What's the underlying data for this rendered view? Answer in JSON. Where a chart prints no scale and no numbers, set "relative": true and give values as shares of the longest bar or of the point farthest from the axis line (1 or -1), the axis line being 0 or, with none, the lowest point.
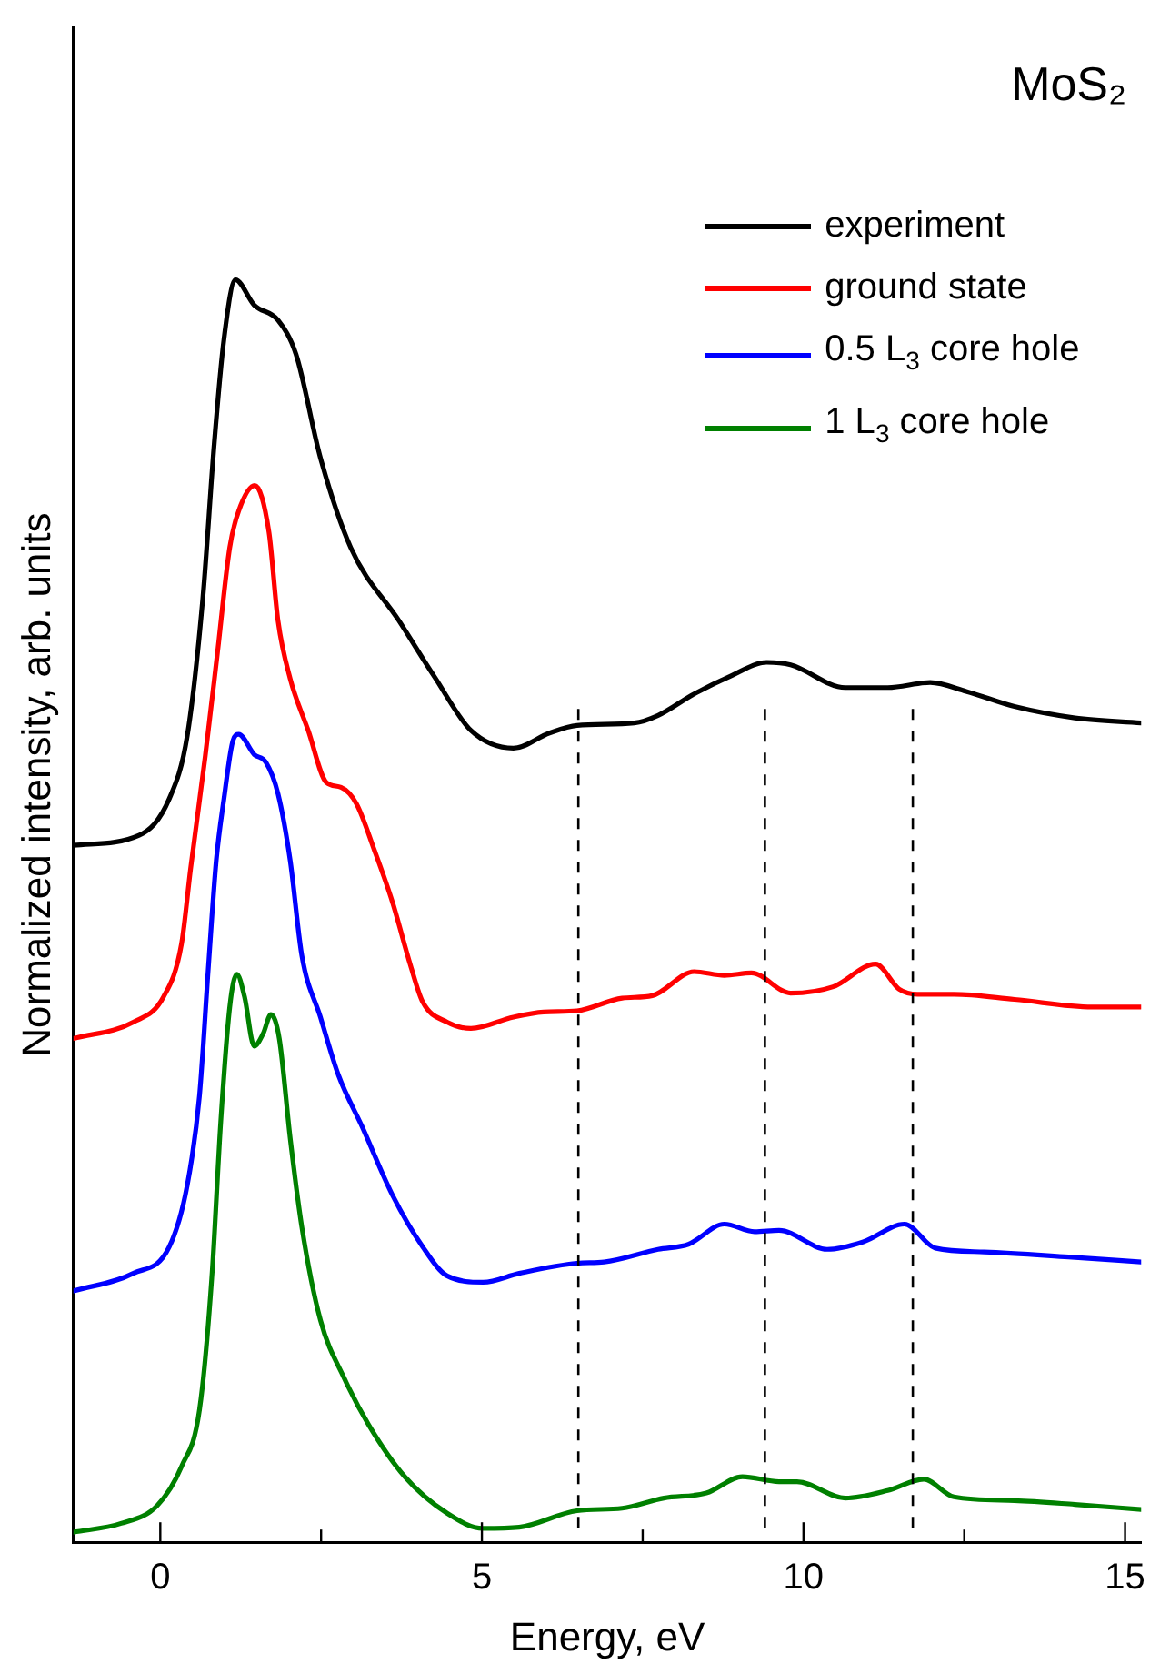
{
  "chart_data": {
    "type": "line",
    "xlabel": "Energy, eV",
    "ylabel": "Normalized intensity, arb. units",
    "relative": true,
    "legend": "top right",
    "marker": "none",
    "line_style": "solid",
    "grid": false,
    "annotations": [
      "MoS₂"
    ],
    "xlim": [
      -1.35,
      15.25
    ],
    "xticks": [
      0,
      {
        "value": 2.5,
        "label": null
      },
      5,
      {
        "value": 7.5,
        "label": null
      },
      10,
      {
        "value": 12.5,
        "label": null
      },
      15
    ],
    "ref_lines": [
      {
        "axis": "x",
        "value": 6.5,
        "color": "#000000",
        "line_style": "dashed"
      },
      {
        "axis": "x",
        "value": 9.4,
        "color": "#000000",
        "line_style": "dashed"
      },
      {
        "axis": "x",
        "value": 11.7,
        "color": "#000000",
        "line_style": "dashed"
      }
    ],
    "series": [
      {
        "name": "experiment",
        "color": "#000000",
        "x": [
          -1.35,
          -0.33,
          0.14,
          0.42,
          0.66,
          0.84,
          0.99,
          1.17,
          1.46,
          1.83,
          2.11,
          2.49,
          2.96,
          3.71,
          4.27,
          4.83,
          5.49,
          6.05,
          6.48,
          7.37,
          7.74,
          8.3,
          8.86,
          9.43,
          9.8,
          10.65,
          11.31,
          11.97,
          12.53,
          13.28,
          14.22,
          15.25
        ],
        "values": [
          0.552,
          0.56,
          0.589,
          0.639,
          0.747,
          0.871,
          0.953,
          1,
          0.98,
          0.968,
          0.941,
          0.859,
          0.788,
          0.73,
          0.685,
          0.643,
          0.629,
          0.641,
          0.647,
          0.649,
          0.655,
          0.672,
          0.686,
          0.697,
          0.695,
          0.677,
          0.677,
          0.681,
          0.674,
          0.662,
          0.653,
          0.649
        ]
      },
      {
        "name": "ground state",
        "color": "#ff0000",
        "x": [
          -1.35,
          -0.42,
          0.05,
          0.33,
          0.47,
          0.7,
          0.89,
          1.08,
          1.22,
          1.47,
          1.69,
          1.83,
          2.02,
          2.3,
          2.58,
          2.81,
          3.05,
          3.33,
          3.61,
          3.89,
          4.08,
          4.46,
          4.83,
          5.49,
          5.96,
          6.48,
          7.18,
          7.65,
          8.3,
          8.77,
          9.19,
          9.8,
          10.46,
          11.12,
          11.49,
          11.77,
          12.34,
          13.28,
          14.49,
          15.25
        ],
        "values": [
          0.399,
          0.412,
          0.432,
          0.474,
          0.533,
          0.623,
          0.705,
          0.788,
          0.817,
          0.837,
          0.8,
          0.73,
          0.684,
          0.643,
          0.602,
          0.598,
          0.585,
          0.548,
          0.507,
          0.457,
          0.428,
          0.412,
          0.407,
          0.416,
          0.42,
          0.421,
          0.431,
          0.433,
          0.452,
          0.449,
          0.451,
          0.435,
          0.44,
          0.458,
          0.438,
          0.434,
          0.434,
          0.43,
          0.424,
          0.424
        ]
      },
      {
        "name": "0.5 L$_{3}$ core hole",
        "color": "#0000ff",
        "x": [
          -1.35,
          -0.42,
          0.14,
          0.42,
          0.61,
          0.75,
          0.87,
          0.99,
          1.13,
          1.22,
          1.46,
          1.64,
          1.83,
          2.02,
          2.2,
          2.49,
          2.77,
          3.14,
          3.61,
          4.08,
          4.46,
          5.02,
          5.58,
          6.48,
          6.9,
          7.74,
          8.21,
          8.77,
          9.24,
          9.62,
          10.37,
          10.93,
          11.57,
          12.05,
          12.81,
          14.12,
          15.25
        ],
        "values": [
          0.199,
          0.213,
          0.234,
          0.283,
          0.354,
          0.457,
          0.54,
          0.589,
          0.635,
          0.64,
          0.624,
          0.618,
          0.593,
          0.54,
          0.465,
          0.416,
          0.37,
          0.329,
          0.275,
          0.234,
          0.211,
          0.206,
          0.213,
          0.221,
          0.222,
          0.232,
          0.236,
          0.252,
          0.246,
          0.247,
          0.232,
          0.238,
          0.252,
          0.233,
          0.23,
          0.226,
          0.222
        ]
      },
      {
        "name": "1 L$_{3}$ core hole",
        "color": "#008000",
        "x": [
          -1.35,
          -0.61,
          -0.05,
          0.33,
          0.61,
          0.8,
          0.94,
          1.08,
          1.19,
          1.31,
          1.46,
          1.6,
          1.72,
          1.85,
          2.02,
          2.2,
          2.49,
          2.86,
          3.24,
          3.8,
          4.46,
          5.02,
          5.58,
          6.48,
          7.18,
          7.83,
          8.49,
          9.05,
          9.62,
          9.9,
          10.65,
          11.31,
          11.87,
          12.34,
          13.28,
          14.22,
          15.25
        ],
        "values": [
          0.008,
          0.015,
          0.029,
          0.06,
          0.105,
          0.209,
          0.333,
          0.424,
          0.45,
          0.432,
          0.393,
          0.403,
          0.418,
          0.399,
          0.32,
          0.25,
          0.176,
          0.13,
          0.093,
          0.052,
          0.023,
          0.011,
          0.012,
          0.025,
          0.027,
          0.035,
          0.039,
          0.052,
          0.048,
          0.048,
          0.035,
          0.041,
          0.05,
          0.036,
          0.033,
          0.03,
          0.026
        ]
      }
    ]
  }
}
